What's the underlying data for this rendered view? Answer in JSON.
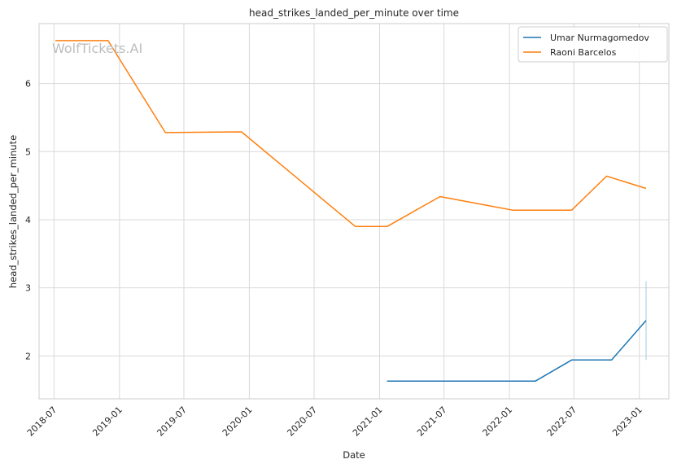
{
  "watermark": "WolfTickets.AI",
  "chart_data": {
    "type": "line",
    "title": "head_strikes_landed_per_minute over time",
    "xlabel": "Date",
    "ylabel": "head_strikes_landed_per_minute",
    "x_ticks": [
      "2018-07",
      "2019-01",
      "2019-07",
      "2020-01",
      "2020-07",
      "2021-01",
      "2021-07",
      "2022-01",
      "2022-07",
      "2023-01"
    ],
    "y_ticks": [
      2,
      3,
      4,
      5,
      6
    ],
    "xlim": [
      "2018-05-20",
      "2023-03-25"
    ],
    "ylim": [
      1.37,
      6.88
    ],
    "grid": true,
    "legend_position": "top-right",
    "series": [
      {
        "name": "Umar Nurmagomedov",
        "color": "#1f77b4",
        "points": [
          {
            "x": "2021-01-22",
            "y": 1.63
          },
          {
            "x": "2022-03-15",
            "y": 1.63
          },
          {
            "x": "2022-06-25",
            "y": 1.94
          },
          {
            "x": "2022-10-15",
            "y": 1.94
          },
          {
            "x": "2023-01-20",
            "y": 2.52
          }
        ]
      },
      {
        "name": "Raoni Barcelos",
        "color": "#ff7f0e",
        "points": [
          {
            "x": "2018-07-05",
            "y": 6.63
          },
          {
            "x": "2018-11-30",
            "y": 6.63
          },
          {
            "x": "2019-05-10",
            "y": 5.28
          },
          {
            "x": "2019-12-10",
            "y": 5.29
          },
          {
            "x": "2020-10-25",
            "y": 3.9
          },
          {
            "x": "2021-01-22",
            "y": 3.9
          },
          {
            "x": "2021-06-20",
            "y": 4.34
          },
          {
            "x": "2022-01-10",
            "y": 4.14
          },
          {
            "x": "2022-06-25",
            "y": 4.14
          },
          {
            "x": "2022-10-01",
            "y": 4.64
          },
          {
            "x": "2023-01-20",
            "y": 4.46
          }
        ]
      }
    ],
    "error_bar": {
      "x": "2023-01-20",
      "y_low": 1.94,
      "y_high": 3.1,
      "color": "#a6c8e3"
    }
  }
}
